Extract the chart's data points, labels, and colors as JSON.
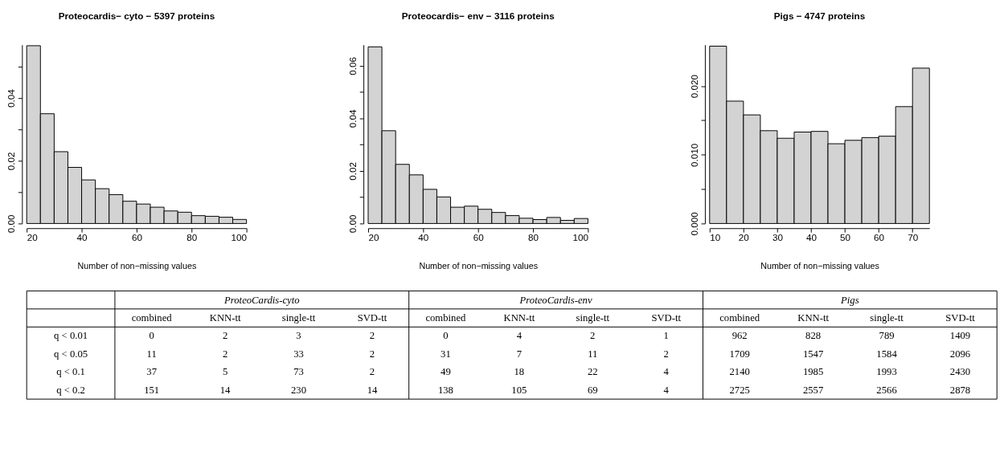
{
  "chart_data": [
    {
      "type": "histogram",
      "title": "Proteocardis− cyto − 5397 proteins",
      "xlabel": "Number of non−missing values",
      "color": "#d3d3d3",
      "bins": [
        20,
        25,
        30,
        35,
        40,
        45,
        50,
        55,
        60,
        65,
        70,
        75,
        80,
        85,
        90,
        95,
        100
      ],
      "values": [
        0.0567,
        0.035,
        0.0229,
        0.0179,
        0.0139,
        0.0111,
        0.0092,
        0.0071,
        0.0062,
        0.0052,
        0.004,
        0.0036,
        0.0025,
        0.0023,
        0.002,
        0.0013
      ],
      "xlim": [
        20,
        100
      ],
      "xticks": [
        20,
        40,
        60,
        80,
        100
      ],
      "ylim": [
        0,
        0.057
      ],
      "yticks": [
        {
          "value": 0,
          "label": "0.00"
        },
        {
          "value": 0.01,
          "label": null
        },
        {
          "value": 0.02,
          "label": "0.02"
        },
        {
          "value": 0.03,
          "label": null
        },
        {
          "value": 0.04,
          "label": "0.04"
        },
        {
          "value": 0.05,
          "label": null
        }
      ]
    },
    {
      "type": "histogram",
      "title": "Proteocardis− env − 3116 proteins",
      "xlabel": "Number of non−missing values",
      "color": "#d3d3d3",
      "bins": [
        20,
        25,
        30,
        35,
        40,
        45,
        50,
        55,
        60,
        65,
        70,
        75,
        80,
        85,
        90,
        95,
        100
      ],
      "values": [
        0.0672,
        0.0353,
        0.0225,
        0.0185,
        0.013,
        0.0101,
        0.0062,
        0.0066,
        0.0054,
        0.0042,
        0.003,
        0.002,
        0.0015,
        0.0023,
        0.0012,
        0.0019
      ],
      "xlim": [
        20,
        100
      ],
      "xticks": [
        20,
        40,
        60,
        80,
        100
      ],
      "ylim": [
        0,
        0.068
      ],
      "yticks": [
        {
          "value": 0,
          "label": "0.00"
        },
        {
          "value": 0.01,
          "label": null
        },
        {
          "value": 0.02,
          "label": "0.02"
        },
        {
          "value": 0.03,
          "label": null
        },
        {
          "value": 0.04,
          "label": "0.04"
        },
        {
          "value": 0.05,
          "label": null
        },
        {
          "value": 0.06,
          "label": "0.06"
        }
      ]
    },
    {
      "type": "histogram",
      "title": "Pigs − 4747 proteins",
      "xlabel": "Number of non−missing values",
      "color": "#d3d3d3",
      "bins": [
        10,
        15,
        20,
        25,
        30,
        35,
        40,
        45,
        50,
        55,
        60,
        65,
        70,
        75
      ],
      "values": [
        0.0258,
        0.0178,
        0.0158,
        0.0135,
        0.0124,
        0.0133,
        0.0134,
        0.0116,
        0.0121,
        0.0125,
        0.0127,
        0.017,
        0.0226
      ],
      "xlim": [
        10,
        75
      ],
      "xticks": [
        10,
        20,
        30,
        40,
        50,
        60,
        70
      ],
      "ylim": [
        0,
        0.026
      ],
      "yticks": [
        {
          "value": 0,
          "label": "0.000"
        },
        {
          "value": 0.005,
          "label": null
        },
        {
          "value": 0.01,
          "label": "0.010"
        },
        {
          "value": 0.015,
          "label": null
        },
        {
          "value": 0.02,
          "label": "0.020"
        }
      ]
    },
    {
      "type": "other",
      "annotations": [
        "ProteoCardis-cyto",
        "ProteoCardis-env",
        "Pigs"
      ],
      "categories": [
        "combined",
        "KNN-tt",
        "single-tt",
        "SVD-tt",
        "combined",
        "KNN-tt",
        "single-tt",
        "SVD-tt",
        "combined",
        "KNN-tt",
        "single-tt",
        "SVD-tt"
      ],
      "y_categories": [
        "q < 0.01",
        "q < 0.05",
        "q < 0.1",
        "q < 0.2"
      ],
      "cell_labels": [
        [
          "0",
          "2",
          "3",
          "2",
          "0",
          "4",
          "2",
          "1",
          "962",
          "828",
          "789",
          "1409"
        ],
        [
          "11",
          "2",
          "33",
          "2",
          "31",
          "7",
          "11",
          "2",
          "1709",
          "1547",
          "1584",
          "2096"
        ],
        [
          "37",
          "5",
          "73",
          "2",
          "49",
          "18",
          "22",
          "4",
          "2140",
          "1985",
          "1993",
          "2430"
        ],
        [
          "151",
          "14",
          "230",
          "14",
          "138",
          "105",
          "69",
          "4",
          "2725",
          "2557",
          "2566",
          "2878"
        ]
      ]
    }
  ]
}
